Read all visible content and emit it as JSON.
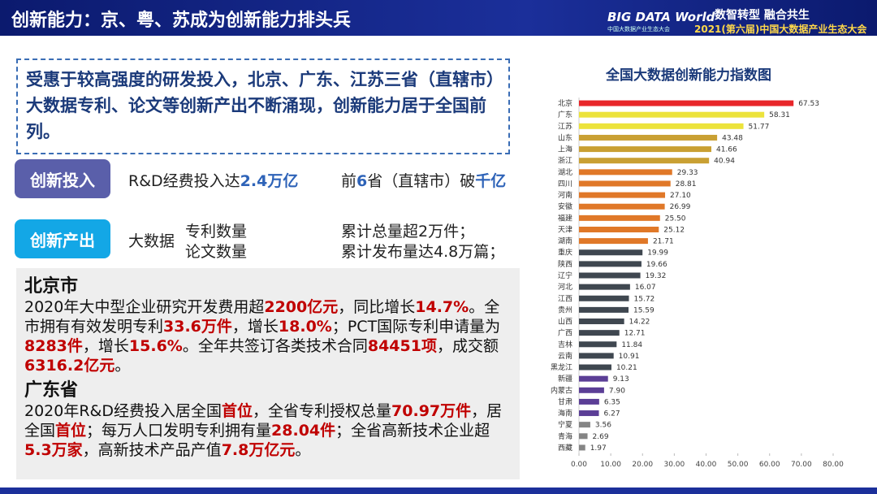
{
  "header": {
    "title": "创新能力：京、粤、苏成为创新能力排头兵",
    "logo": "BIG DATA World",
    "logo_sub": "中国大数据产业生态大会",
    "slogan": "数智转型 融合共生",
    "conference": "2021(第六届)中国大数据产业生态大会"
  },
  "callout": "受惠于较高强度的研发投入，北京、广东、江苏三省（直辖市）大数据专利、论文等创新产出不断涌现，创新能力居于全国前列。",
  "input": {
    "tag": "创新投入",
    "items": [
      [
        {
          "t": "R&D经费投入达"
        },
        {
          "t": "2.4万亿",
          "em": true
        }
      ],
      [
        {
          "t": "前"
        },
        {
          "t": "6",
          "em": true
        },
        {
          "t": "省（直辖市）破"
        },
        {
          "t": "千亿",
          "em": true
        }
      ]
    ]
  },
  "output": {
    "tag": "创新产出",
    "subject": "大数据",
    "metrics": [
      "专利数量",
      "论文数量"
    ],
    "results": [
      "累计总量超2万件；",
      "累计发布量达4.8万篇；"
    ]
  },
  "regions": [
    {
      "name": "北京市",
      "text": [
        {
          "t": "2020年大中型企业研究开发费用超"
        },
        {
          "t": "2200亿元",
          "em": true
        },
        {
          "t": "，同比增长"
        },
        {
          "t": "14.7%",
          "em": true
        },
        {
          "t": "。全市拥有有效发明专利"
        },
        {
          "t": "33.6万件",
          "em": true
        },
        {
          "t": "，增长"
        },
        {
          "t": "18.0%",
          "em": true
        },
        {
          "t": "；PCT国际专利申请量为"
        },
        {
          "t": "8283件",
          "em": true
        },
        {
          "t": "，增长"
        },
        {
          "t": "15.6%",
          "em": true
        },
        {
          "t": "。全年共签订各类技术合同"
        },
        {
          "t": "84451项",
          "em": true
        },
        {
          "t": "，成交额"
        },
        {
          "t": "6316.2亿元",
          "em": true
        },
        {
          "t": "。"
        }
      ]
    },
    {
      "name": "广东省",
      "text": [
        {
          "t": "2020年R&D经费投入居全国"
        },
        {
          "t": "首位",
          "em": true
        },
        {
          "t": "，全省专利授权总量"
        },
        {
          "t": "70.97万件",
          "em": true
        },
        {
          "t": "，居全国"
        },
        {
          "t": "首位",
          "em": true
        },
        {
          "t": "；每万人口发明专利拥有量"
        },
        {
          "t": "28.04件",
          "em": true
        },
        {
          "t": "；全省高新技术企业超"
        },
        {
          "t": "5.3万家",
          "em": true
        },
        {
          "t": "，高新技术产品产值"
        },
        {
          "t": "7.8万亿元",
          "em": true
        },
        {
          "t": "。"
        }
      ]
    }
  ],
  "chart_data": {
    "type": "hbar",
    "title": "全国大数据创新能力指数图",
    "categories": [
      "北京",
      "广东",
      "江苏",
      "山东",
      "上海",
      "浙江",
      "湖北",
      "四川",
      "河南",
      "安徽",
      "福建",
      "天津",
      "湖南",
      "重庆",
      "陕西",
      "辽宁",
      "河北",
      "江西",
      "贵州",
      "山西",
      "广西",
      "吉林",
      "云南",
      "黑龙江",
      "新疆",
      "内蒙古",
      "甘肃",
      "海南",
      "宁夏",
      "青海",
      "西藏"
    ],
    "values": [
      67.53,
      58.31,
      51.77,
      43.48,
      41.66,
      40.94,
      29.33,
      28.81,
      27.1,
      26.99,
      25.5,
      25.12,
      21.71,
      19.99,
      19.66,
      19.32,
      16.07,
      15.72,
      15.59,
      14.22,
      12.71,
      11.84,
      10.91,
      10.21,
      9.13,
      7.9,
      6.35,
      6.27,
      3.56,
      2.69,
      1.97
    ],
    "value_labels": [
      "67.53",
      "58.31",
      "51.77",
      "43.48",
      "41.66",
      "40.94",
      "29.33",
      "28.81",
      "27.10",
      "26.99",
      "25.50",
      "25.12",
      "21.71",
      "19.99",
      "19.66",
      "19.32",
      "16.07",
      "15.72",
      "15.59",
      "14.22",
      "12.71",
      "11.84",
      "10.91",
      "10.21",
      "9.13",
      "7.90",
      "6.35",
      "6.27",
      "3.56",
      "2.69",
      "1.97"
    ],
    "colors": [
      "#e8262a",
      "#ece33c",
      "#ece33c",
      "#c9a033",
      "#c9a033",
      "#c9a033",
      "#e07828",
      "#e07828",
      "#e07828",
      "#e07828",
      "#e07828",
      "#e07828",
      "#e07828",
      "#3f4750",
      "#3f4750",
      "#3f4750",
      "#3f4750",
      "#3f4750",
      "#3f4750",
      "#3f4750",
      "#3f4750",
      "#3f4750",
      "#3f4750",
      "#3f4750",
      "#5b3e96",
      "#5b3e96",
      "#5b3e96",
      "#5b3e96",
      "#858585",
      "#858585",
      "#858585"
    ],
    "xlim": [
      0,
      80
    ],
    "xticks": [
      {
        "value": 0,
        "label": "0.00"
      },
      {
        "value": 10,
        "label": "10.00"
      },
      {
        "value": 20,
        "label": "20.00"
      },
      {
        "value": 30,
        "label": "30.00"
      },
      {
        "value": 40,
        "label": "40.00"
      },
      {
        "value": 50,
        "label": "50.00"
      },
      {
        "value": 60,
        "label": "60.00"
      },
      {
        "value": 70,
        "label": "70.00"
      },
      {
        "value": 80,
        "label": "80.00"
      }
    ]
  }
}
